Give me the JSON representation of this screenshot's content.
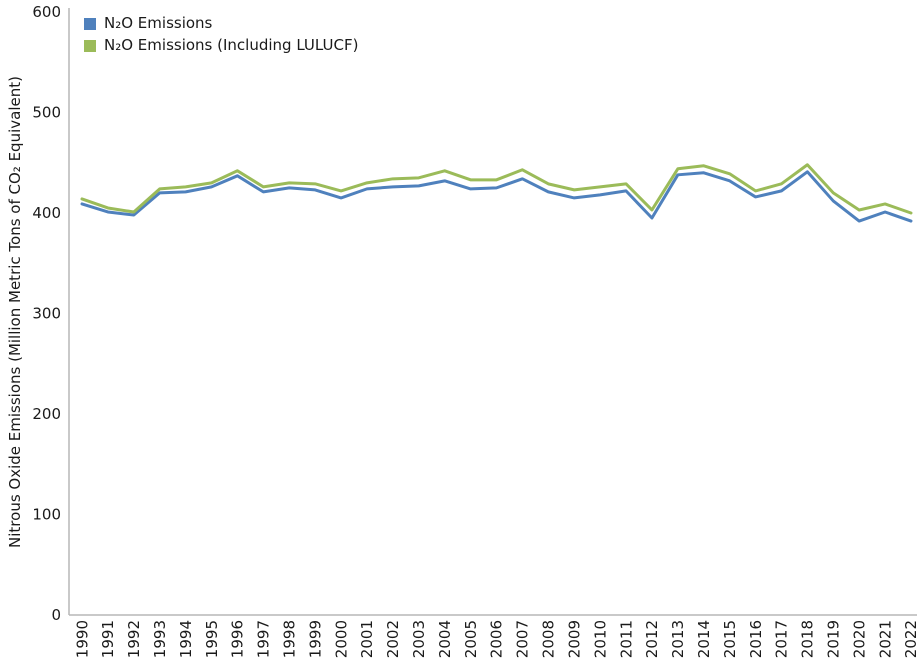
{
  "chart_data": {
    "type": "line",
    "title": "",
    "xlabel": "",
    "ylabel": "Nitrous Oxide Emissions (Million Metric Tons of CO₂ Equivalent)",
    "ylim": [
      0,
      600
    ],
    "yticks": [
      0,
      100,
      200,
      300,
      400,
      500,
      600
    ],
    "grid": false,
    "legend_position": "top-left",
    "axis_color": "#b7b7b7",
    "categories": [
      "1990",
      "1991",
      "1992",
      "1993",
      "1994",
      "1995",
      "1996",
      "1997",
      "1998",
      "1999",
      "2000",
      "2001",
      "2002",
      "2003",
      "2004",
      "2005",
      "2006",
      "2007",
      "2008",
      "2009",
      "2010",
      "2011",
      "2012",
      "2013",
      "2014",
      "2015",
      "2016",
      "2017",
      "2018",
      "2019",
      "2020",
      "2021",
      "2022"
    ],
    "series": [
      {
        "name": "N₂O Emissions",
        "color": "#4F81BD",
        "values": [
          409,
          401,
          398,
          420,
          421,
          426,
          437,
          421,
          425,
          423,
          415,
          424,
          426,
          427,
          432,
          424,
          425,
          434,
          421,
          415,
          418,
          422,
          395,
          438,
          440,
          432,
          416,
          422,
          441,
          412,
          392,
          401,
          392
        ]
      },
      {
        "name": "N₂O Emissions (Including LULUCF)",
        "color": "#9BBB59",
        "values": [
          414,
          405,
          401,
          424,
          426,
          430,
          442,
          426,
          430,
          429,
          422,
          430,
          434,
          435,
          442,
          433,
          433,
          443,
          429,
          423,
          426,
          429,
          403,
          444,
          447,
          439,
          422,
          429,
          448,
          420,
          403,
          409,
          400
        ]
      }
    ]
  }
}
